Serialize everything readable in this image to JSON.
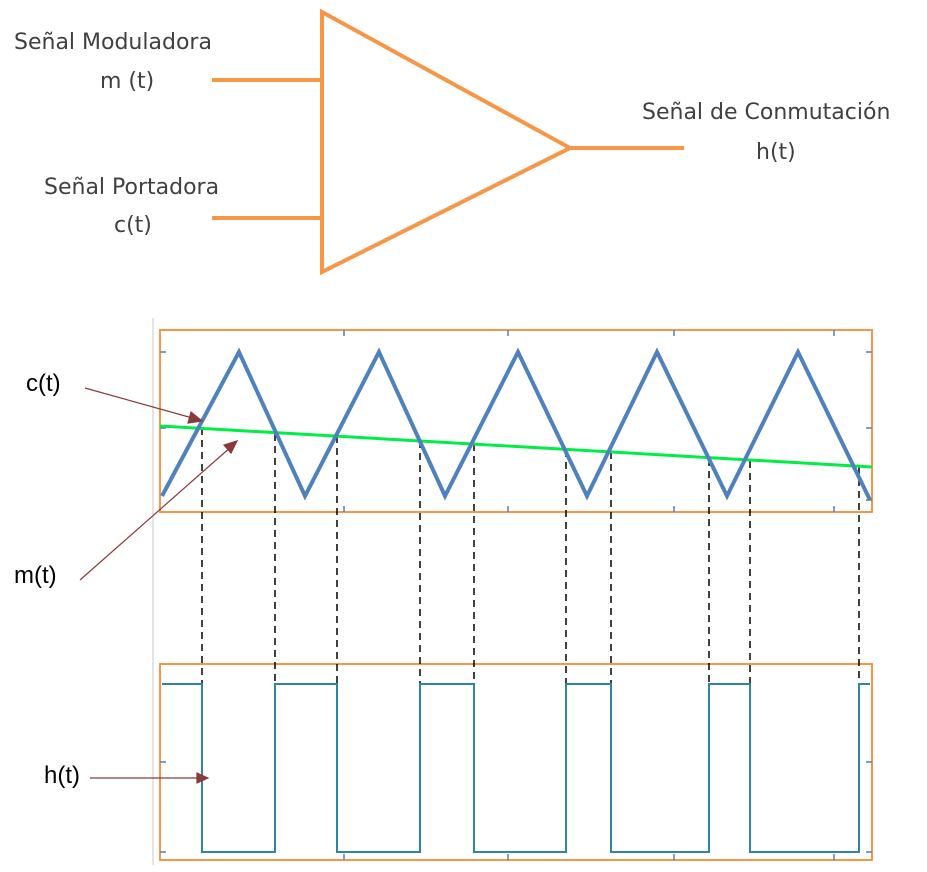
{
  "block": {
    "input1_name": "Señal Moduladora",
    "input1_symbol": "m (t)",
    "input2_name": "Señal Portadora",
    "input2_symbol": "c(t)",
    "output_name": "Señal de Conmutación",
    "output_symbol": "h(t)"
  },
  "plot_labels": {
    "carrier": "c(t)",
    "modulating": "m(t)",
    "switching": "h(t)"
  },
  "colors": {
    "block": "#f79646",
    "carrier": "#4f81bd",
    "modulating": "#00ee44",
    "switching": "#31859c",
    "frame": "#f79646",
    "arrow": "#8b3a3a"
  }
}
